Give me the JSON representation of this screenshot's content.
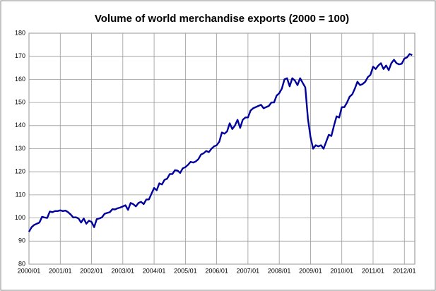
{
  "chart_data": {
    "type": "line",
    "title": "Volume of world merchandise exports (2000 = 100)",
    "categories": [
      "2000/01",
      null,
      null,
      null,
      null,
      null,
      null,
      null,
      null,
      null,
      null,
      null,
      "2001/01",
      null,
      null,
      null,
      null,
      null,
      null,
      null,
      null,
      null,
      null,
      null,
      "2002/01",
      null,
      null,
      null,
      null,
      null,
      null,
      null,
      null,
      null,
      null,
      null,
      "2003/01",
      null,
      null,
      null,
      null,
      null,
      null,
      null,
      null,
      null,
      null,
      null,
      "2004/01",
      null,
      null,
      null,
      null,
      null,
      null,
      null,
      null,
      null,
      null,
      null,
      "2005/01",
      null,
      null,
      null,
      null,
      null,
      null,
      null,
      null,
      null,
      null,
      null,
      "2006/01",
      null,
      null,
      null,
      null,
      null,
      null,
      null,
      null,
      null,
      null,
      null,
      "2007/01",
      null,
      null,
      null,
      null,
      null,
      null,
      null,
      null,
      null,
      null,
      null,
      "2008/01",
      null,
      null,
      null,
      null,
      null,
      null,
      null,
      null,
      null,
      null,
      null,
      "2009/01",
      null,
      null,
      null,
      null,
      null,
      null,
      null,
      null,
      null,
      null,
      null,
      "2010/01",
      null,
      null,
      null,
      null,
      null,
      null,
      null,
      null,
      null,
      null,
      null,
      "2011/01",
      null,
      null,
      null,
      null,
      null,
      null,
      null,
      null,
      null,
      null,
      null,
      "2012/01",
      null,
      null,
      null
    ],
    "series": [
      {
        "name": "Volume of world merchandise exports",
        "color": "#00009c",
        "values": [
          94,
          96,
          97,
          97.5,
          98,
          100.5,
          100.2,
          100,
          102.8,
          102.5,
          103,
          103,
          103.3,
          103,
          103.2,
          102.5,
          101.5,
          100.2,
          100.3,
          99.8,
          98,
          99.8,
          97.5,
          98.8,
          98.3,
          96,
          99.5,
          99.8,
          100.3,
          101.8,
          102.2,
          102.5,
          103.8,
          103.7,
          104.2,
          104.5,
          105,
          105.5,
          103.5,
          106.5,
          106,
          105,
          106.5,
          107,
          106,
          108,
          108,
          110.5,
          113,
          112,
          115,
          114.5,
          116.5,
          117,
          119,
          119,
          120.7,
          120.5,
          119.5,
          121.5,
          122,
          123,
          124.3,
          124,
          124.5,
          125.5,
          127.5,
          128,
          129,
          128.5,
          130,
          131,
          131.5,
          133,
          137,
          136.5,
          137.5,
          141,
          138.5,
          140,
          142.5,
          139,
          142.5,
          143.5,
          143.5,
          146.5,
          147.5,
          148,
          148.5,
          149,
          147.5,
          148,
          148.5,
          150,
          150,
          153,
          154,
          156,
          160,
          160.5,
          157,
          160.5,
          159.5,
          157.5,
          160.5,
          158.5,
          156.5,
          143,
          135,
          130,
          131.5,
          131,
          131.5,
          130,
          133,
          136,
          135.5,
          140,
          144,
          143.5,
          148,
          148,
          150,
          152.5,
          153.5,
          156,
          159,
          157.5,
          158,
          159,
          161,
          162,
          165.5,
          164.5,
          166,
          167,
          164.5,
          166,
          164,
          167,
          168.5,
          167,
          166.5,
          166.8,
          169,
          169.5,
          171,
          170.5
        ]
      }
    ],
    "ylim": [
      80,
      180
    ],
    "yticks": [
      80,
      90,
      100,
      110,
      120,
      130,
      140,
      150,
      160,
      170,
      180
    ],
    "grid": true
  }
}
